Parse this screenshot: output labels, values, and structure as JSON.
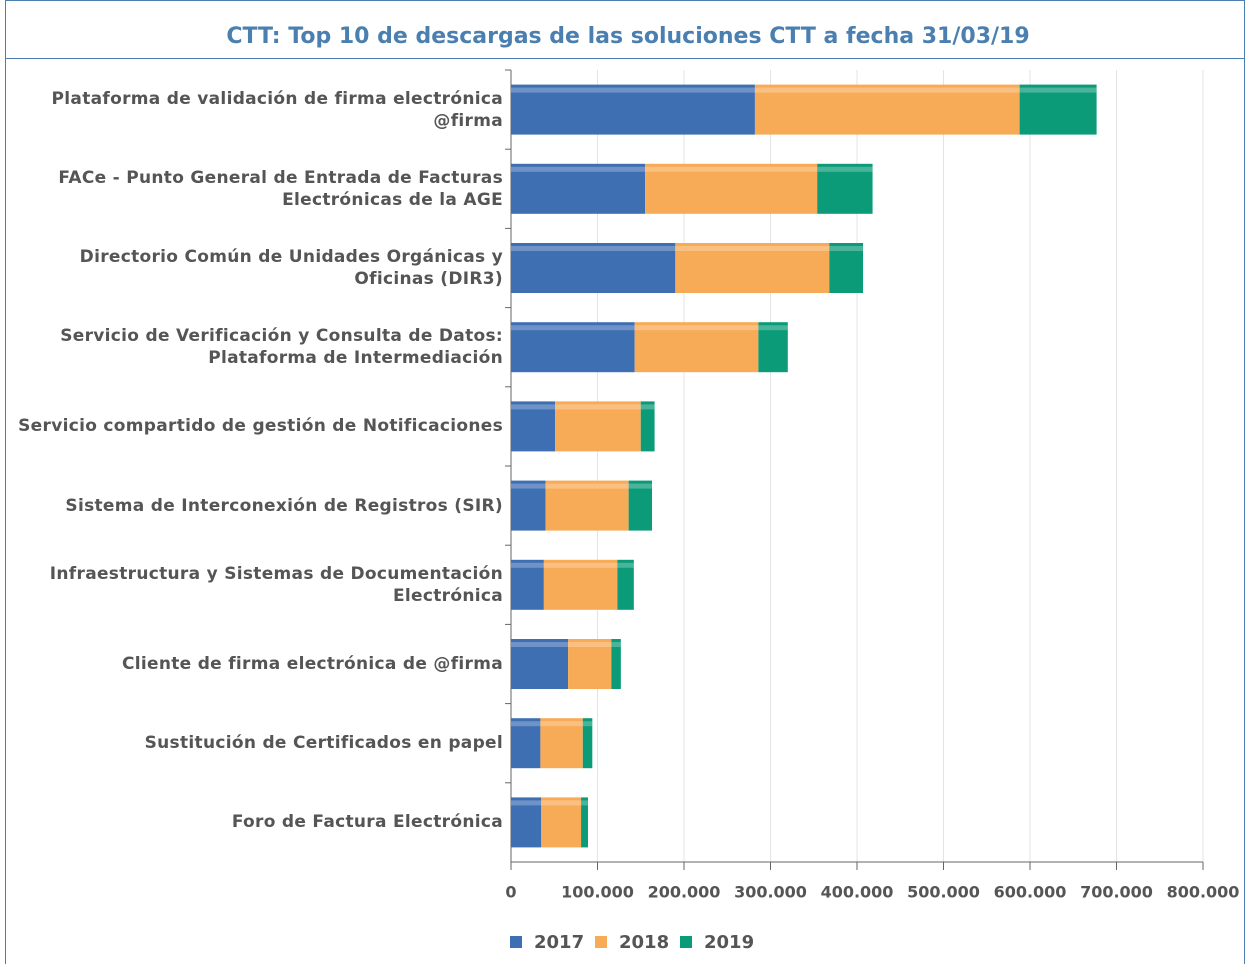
{
  "chart_data": {
    "type": "stacked-barh",
    "title": "CTT: Top 10 de descargas de las soluciones CTT a fecha 31/03/19",
    "categories": [
      "Plataforma de validación de firma electrónica\n@firma",
      "FACe - Punto General de Entrada de Facturas\nElectrónicas de la AGE",
      "Directorio Común de Unidades Orgánicas y\nOficinas (DIR3)",
      "Servicio de Verificación y Consulta de Datos:\nPlataforma de Intermediación",
      "Servicio compartido de gestión de Notificaciones",
      "Sistema de Interconexión de Registros (SIR)",
      "Infraestructura y Sistemas de Documentación\nElectrónica",
      "Cliente de firma electrónica de @firma",
      "Sustitución de Certificados en papel",
      "Foro de Factura Electrónica"
    ],
    "series": [
      {
        "name": "2017",
        "color": "#3f6fb3",
        "values": [
          282000,
          155000,
          190000,
          143000,
          51000,
          40000,
          38000,
          66000,
          34000,
          35000
        ]
      },
      {
        "name": "2018",
        "color": "#f7ab57",
        "values": [
          306000,
          199000,
          178000,
          143000,
          99000,
          96000,
          85000,
          50000,
          49000,
          46000
        ]
      },
      {
        "name": "2019",
        "color": "#0c9b78",
        "values": [
          89000,
          64000,
          39000,
          34000,
          16000,
          27000,
          19000,
          11000,
          11000,
          8000
        ]
      }
    ],
    "xlim": [
      0,
      800000
    ],
    "xticks": [
      0,
      {
        "value": 100000,
        "label": "100.000"
      },
      {
        "value": 200000,
        "label": "200.000"
      },
      {
        "value": 300000,
        "label": "300.000"
      },
      {
        "value": 400000,
        "label": "400.000"
      },
      {
        "value": 500000,
        "label": "500.000"
      },
      {
        "value": 600000,
        "label": "600.000"
      },
      {
        "value": 700000,
        "label": "700.000"
      },
      {
        "value": 800000,
        "label": "800.000"
      }
    ],
    "grid": true
  }
}
